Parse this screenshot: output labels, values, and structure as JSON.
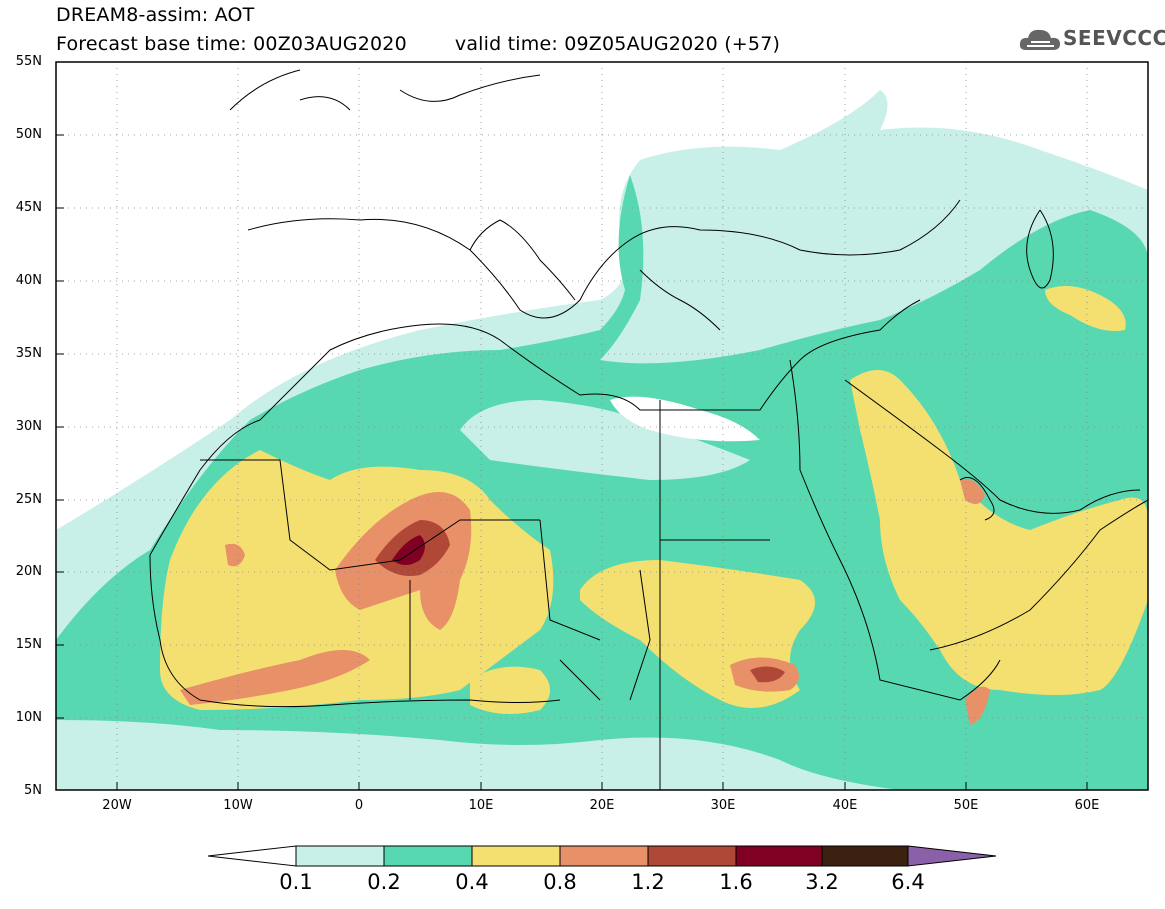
{
  "header": {
    "title_line1": "DREAM8-assim: AOT",
    "base_time": "Forecast base time: 00Z03AUG2020",
    "valid_time": "valid time: 09Z05AUG2020 (+57)"
  },
  "logo": {
    "text": "SEEVCCC",
    "icon": "cloud-icon"
  },
  "map": {
    "lat_labels": [
      "55N",
      "50N",
      "45N",
      "40N",
      "35N",
      "30N",
      "25N",
      "20N",
      "15N",
      "10N",
      "5N"
    ],
    "lon_labels": [
      "20W",
      "10W",
      "0",
      "10E",
      "20E",
      "30E",
      "40E",
      "50E",
      "60E"
    ],
    "lon_range": [
      -25,
      65
    ],
    "lat_range": [
      5,
      55
    ]
  },
  "colorbar": {
    "labels": [
      "0.1",
      "0.2",
      "0.4",
      "0.8",
      "1.2",
      "1.6",
      "3.2",
      "6.4"
    ],
    "colors": [
      "#ffffff",
      "#c8f0e8",
      "#58d8b0",
      "#f4e070",
      "#e89068",
      "#b04838",
      "#800024",
      "#3c2010",
      "#8a60a8"
    ]
  }
}
